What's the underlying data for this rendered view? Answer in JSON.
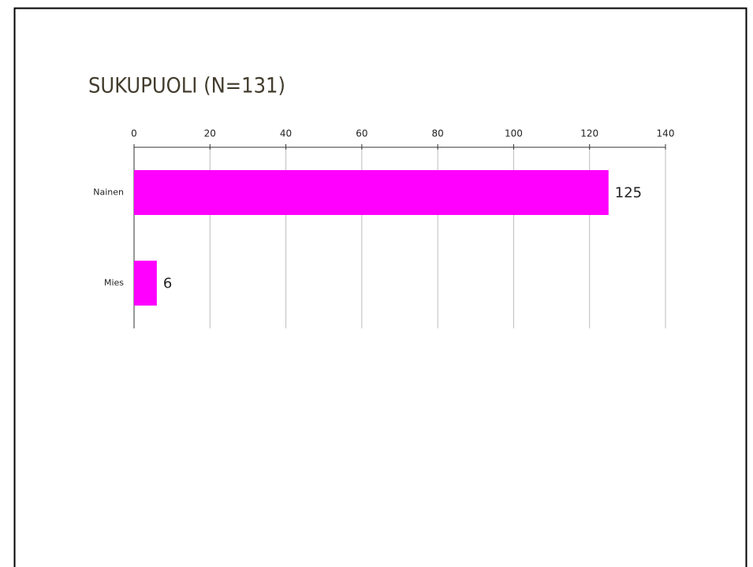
{
  "chart_data": {
    "type": "bar",
    "orientation": "horizontal",
    "title": "SUKUPUOLI (N=131)",
    "categories": [
      "Nainen",
      "Mies"
    ],
    "values": [
      125,
      6
    ],
    "color": "#ff00ff",
    "xlim": [
      0,
      140
    ],
    "xticks": [
      0,
      20,
      40,
      60,
      80,
      100,
      120,
      140
    ],
    "grid": true
  }
}
